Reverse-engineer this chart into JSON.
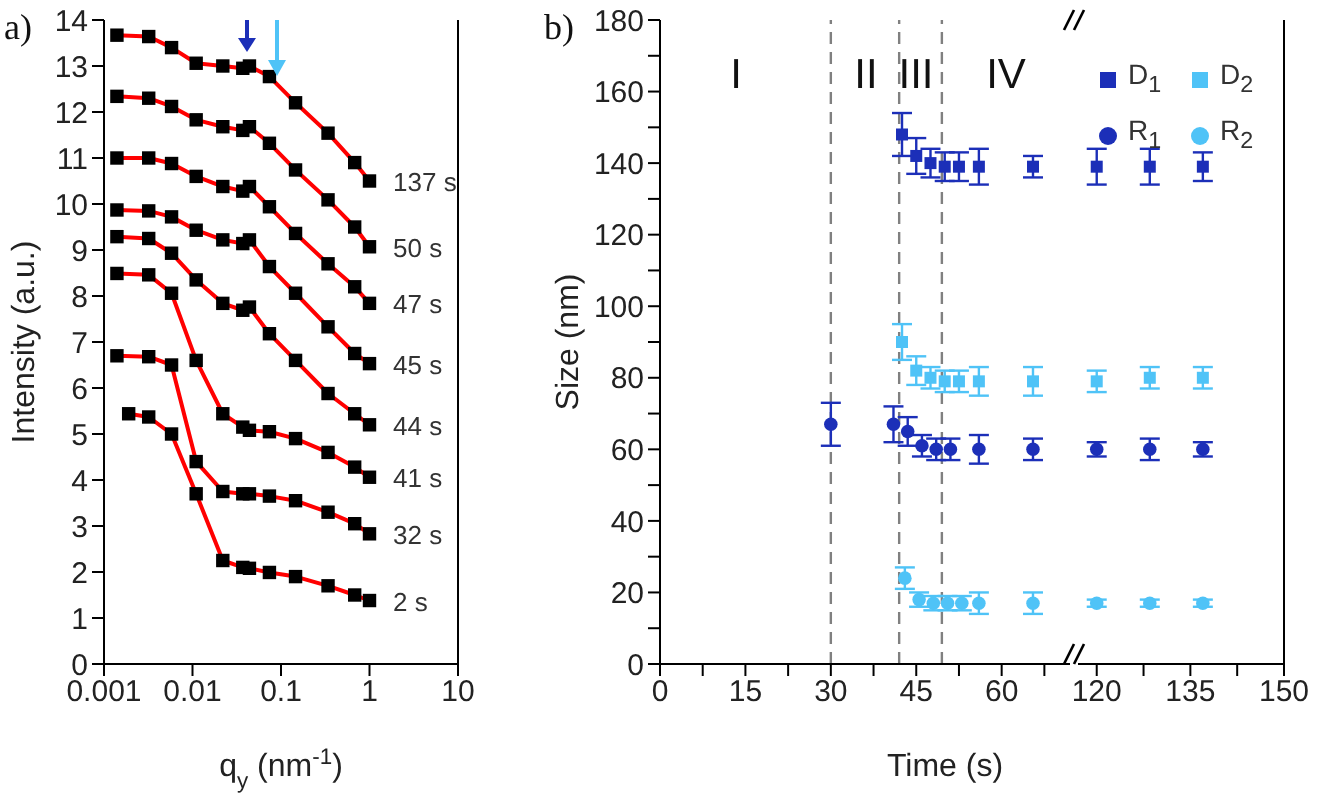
{
  "chart_data": [
    {
      "type": "scatter",
      "annotations": [
        "a)"
      ],
      "xlabel": "q$_{y}$ (nm$^{-1}$)",
      "ylabel": "Intensity (a.u.)",
      "log": "x",
      "xlim": [
        0.001,
        10
      ],
      "xticks": [
        0.001,
        0.01,
        0.1,
        1,
        10
      ],
      "ylim": [
        0,
        14
      ],
      "yticks": [
        0,
        1,
        2,
        3,
        4,
        5,
        6,
        7,
        8,
        9,
        10,
        11,
        12,
        13,
        14
      ],
      "grid": false,
      "legend": false,
      "marker": "square",
      "series": [
        {
          "name": "137 s",
          "color": "#000000",
          "x": [
            0.0014,
            0.0032,
            0.0058,
            0.011,
            0.022,
            0.037,
            0.044,
            0.074,
            0.146,
            0.34,
            0.68,
            1.0
          ],
          "values": [
            13.67,
            13.64,
            13.4,
            13.06,
            13.0,
            12.95,
            13.0,
            12.77,
            12.2,
            11.54,
            10.9,
            10.5
          ]
        },
        {
          "name": "50 s",
          "color": "#000000",
          "x": [
            0.0014,
            0.0032,
            0.0058,
            0.011,
            0.022,
            0.037,
            0.044,
            0.074,
            0.146,
            0.34,
            0.68,
            1.0
          ],
          "values": [
            12.34,
            12.3,
            12.12,
            11.83,
            11.68,
            11.6,
            11.68,
            11.32,
            10.74,
            10.09,
            9.5,
            9.07
          ]
        },
        {
          "name": "47 s",
          "color": "#000000",
          "x": [
            0.0014,
            0.0032,
            0.0058,
            0.011,
            0.022,
            0.037,
            0.044,
            0.074,
            0.146,
            0.34,
            0.68,
            1.0
          ],
          "values": [
            11.0,
            11.0,
            10.88,
            10.6,
            10.38,
            10.28,
            10.38,
            9.94,
            9.36,
            8.7,
            8.2,
            7.84
          ]
        },
        {
          "name": "45 s",
          "color": "#000000",
          "x": [
            0.0014,
            0.0032,
            0.0058,
            0.011,
            0.022,
            0.037,
            0.044,
            0.074,
            0.146,
            0.34,
            0.68,
            1.0
          ],
          "values": [
            9.87,
            9.85,
            9.72,
            9.43,
            9.22,
            9.14,
            9.22,
            8.64,
            8.06,
            7.33,
            6.75,
            6.53
          ]
        },
        {
          "name": "44 s",
          "color": "#000000",
          "x": [
            0.0014,
            0.0032,
            0.0058,
            0.011,
            0.022,
            0.037,
            0.044,
            0.074,
            0.146,
            0.34,
            0.68,
            1.0
          ],
          "values": [
            9.29,
            9.25,
            8.93,
            8.35,
            7.84,
            7.69,
            7.76,
            7.18,
            6.6,
            5.88,
            5.44,
            5.2
          ]
        },
        {
          "name": "41 s",
          "color": "#000000",
          "x": [
            0.0014,
            0.0032,
            0.0058,
            0.011,
            0.022,
            0.037,
            0.044,
            0.074,
            0.146,
            0.34,
            0.68,
            1.0
          ],
          "values": [
            8.49,
            8.46,
            8.06,
            6.6,
            5.44,
            5.15,
            5.08,
            5.05,
            4.9,
            4.6,
            4.28,
            4.06
          ]
        },
        {
          "name": "32 s",
          "color": "#000000",
          "x": [
            0.0014,
            0.0032,
            0.0058,
            0.011,
            0.022,
            0.037,
            0.044,
            0.074,
            0.146,
            0.34,
            0.68,
            1.0
          ],
          "values": [
            6.7,
            6.68,
            6.5,
            4.4,
            3.75,
            3.7,
            3.7,
            3.65,
            3.55,
            3.3,
            3.05,
            2.83
          ]
        },
        {
          "name": "2 s",
          "color": "#000000",
          "x": [
            0.0019,
            0.0032,
            0.0058,
            0.011,
            0.022,
            0.037,
            0.044,
            0.074,
            0.146,
            0.34,
            0.68,
            1.0
          ],
          "values": [
            5.44,
            5.37,
            5.0,
            3.7,
            2.25,
            2.1,
            2.08,
            1.99,
            1.9,
            1.7,
            1.5,
            1.38
          ]
        },
        {
          "type": "line",
          "marker": "none",
          "color": "#ff0000",
          "x": [
            0.0014,
            0.0032,
            0.0058,
            0.011,
            0.022,
            0.037,
            0.044,
            0.074,
            0.146,
            0.34,
            0.68,
            1.0
          ],
          "values": [
            13.67,
            13.64,
            13.4,
            13.06,
            13.0,
            12.95,
            13.0,
            12.77,
            12.2,
            11.54,
            10.9,
            10.5
          ]
        },
        {
          "type": "line",
          "marker": "none",
          "color": "#ff0000",
          "x": [
            0.0014,
            0.0032,
            0.0058,
            0.011,
            0.022,
            0.037,
            0.044,
            0.074,
            0.146,
            0.34,
            0.68,
            1.0
          ],
          "values": [
            12.34,
            12.3,
            12.12,
            11.83,
            11.68,
            11.6,
            11.68,
            11.32,
            10.74,
            10.09,
            9.5,
            9.07
          ]
        },
        {
          "type": "line",
          "marker": "none",
          "color": "#ff0000",
          "x": [
            0.0014,
            0.0032,
            0.0058,
            0.011,
            0.022,
            0.037,
            0.044,
            0.074,
            0.146,
            0.34,
            0.68,
            1.0
          ],
          "values": [
            11.0,
            11.0,
            10.88,
            10.6,
            10.38,
            10.28,
            10.38,
            9.94,
            9.36,
            8.7,
            8.2,
            7.84
          ]
        },
        {
          "type": "line",
          "marker": "none",
          "color": "#ff0000",
          "x": [
            0.0014,
            0.0032,
            0.0058,
            0.011,
            0.022,
            0.037,
            0.044,
            0.074,
            0.146,
            0.34,
            0.68,
            1.0
          ],
          "values": [
            9.87,
            9.85,
            9.72,
            9.43,
            9.22,
            9.14,
            9.22,
            8.64,
            8.06,
            7.33,
            6.75,
            6.53
          ]
        },
        {
          "type": "line",
          "marker": "none",
          "color": "#ff0000",
          "x": [
            0.0014,
            0.0032,
            0.0058,
            0.011,
            0.022,
            0.037,
            0.044,
            0.074,
            0.146,
            0.34,
            0.68,
            1.0
          ],
          "values": [
            9.29,
            9.25,
            8.93,
            8.35,
            7.84,
            7.69,
            7.76,
            7.18,
            6.6,
            5.88,
            5.44,
            5.2
          ]
        },
        {
          "type": "line",
          "marker": "none",
          "color": "#ff0000",
          "x": [
            0.0014,
            0.0032,
            0.0058,
            0.011,
            0.022,
            0.037,
            0.044,
            0.074,
            0.146,
            0.34,
            0.68,
            1.0
          ],
          "values": [
            8.49,
            8.46,
            8.06,
            6.6,
            5.44,
            5.15,
            5.08,
            5.05,
            4.9,
            4.6,
            4.28,
            4.06
          ]
        },
        {
          "type": "line",
          "marker": "none",
          "color": "#ff0000",
          "x": [
            0.0014,
            0.0032,
            0.0058,
            0.011,
            0.022,
            0.037,
            0.044,
            0.074,
            0.146,
            0.34,
            0.68,
            1.0
          ],
          "values": [
            6.7,
            6.68,
            6.5,
            4.4,
            3.75,
            3.7,
            3.7,
            3.65,
            3.55,
            3.3,
            3.05,
            2.83
          ]
        },
        {
          "type": "line",
          "marker": "none",
          "color": "#ff0000",
          "x": [
            0.0019,
            0.0032,
            0.0058,
            0.011,
            0.022,
            0.037,
            0.044,
            0.074,
            0.146,
            0.34,
            0.68,
            1.0
          ],
          "values": [
            5.44,
            5.37,
            5.0,
            3.7,
            2.25,
            2.1,
            2.08,
            1.99,
            1.9,
            1.7,
            1.5,
            1.38
          ]
        }
      ]
    },
    {
      "type": "scatter",
      "annotations": [
        "b)",
        "I",
        "II",
        "III",
        "IV"
      ],
      "xlabel": "Time (s)",
      "ylabel": "Size (nm)",
      "xlim": [
        0,
        72
      ],
      "xticks": [
        0,
        {
          "value": 7.5,
          "label": null
        },
        15,
        {
          "value": 22.5,
          "label": null
        },
        30,
        {
          "value": 37.5,
          "label": null
        },
        45,
        {
          "value": 52.5,
          "label": null
        },
        60,
        {
          "value": 67.5,
          "label": null
        }
      ],
      "ylim": [
        0,
        180
      ],
      "yticks": [
        0,
        {
          "value": 10,
          "label": null
        },
        20,
        {
          "value": 30,
          "label": null
        },
        40,
        {
          "value": 50,
          "label": null
        },
        60,
        {
          "value": 70,
          "label": null
        },
        80,
        {
          "value": 90,
          "label": null
        },
        100,
        {
          "value": 110,
          "label": null
        },
        120,
        {
          "value": 130,
          "label": null
        },
        140,
        {
          "value": 150,
          "label": null
        },
        160,
        {
          "value": 170,
          "label": null
        },
        180
      ],
      "grid": false,
      "legend": false,
      "ref_lines": [
        {
          "axis": "x",
          "value": 30,
          "color": "#808080",
          "line_style": "dashed"
        },
        {
          "axis": "x",
          "value": 42,
          "color": "#808080",
          "line_style": "dashed"
        },
        {
          "axis": "x",
          "value": 49.5,
          "color": "#808080",
          "line_style": "dashed"
        }
      ],
      "series": [
        {
          "marker": "square",
          "color": "#1c2fb8",
          "x": [
            42.5,
            45,
            47.5,
            50,
            52.5,
            56,
            65.5
          ],
          "values": [
            148,
            142,
            140,
            139,
            139,
            139,
            139
          ],
          "errors": [
            6,
            5,
            4,
            4,
            4,
            5,
            3
          ]
        },
        {
          "marker": "square",
          "color": "#4fc3f7",
          "x": [
            42.5,
            45,
            47.5,
            50,
            52.5,
            56,
            65.5
          ],
          "values": [
            90,
            82,
            80,
            79,
            79,
            79,
            79
          ],
          "errors": [
            5,
            4,
            3,
            3,
            3,
            4,
            4
          ]
        },
        {
          "marker": "circle",
          "color": "#1c2fb8",
          "x": [
            30,
            41,
            43.5,
            46,
            48.5,
            51,
            56,
            65.5
          ],
          "values": [
            67,
            67,
            65,
            61,
            60,
            60,
            60,
            60
          ],
          "errors": [
            6,
            5,
            4,
            3,
            3,
            3,
            4,
            3
          ]
        },
        {
          "marker": "circle",
          "color": "#4fc3f7",
          "x": [
            43,
            45.5,
            48,
            50.5,
            53,
            56,
            65.5
          ],
          "values": [
            24,
            18,
            17,
            17,
            17,
            17,
            17
          ],
          "errors": [
            3,
            2,
            2,
            2,
            2,
            3,
            3
          ]
        }
      ]
    },
    {
      "type": "scatter",
      "tick_labels": "x",
      "xlim": [
        117,
        150
      ],
      "xticks": [
        120,
        {
          "value": 127.5,
          "label": null
        },
        135,
        {
          "value": 142.5,
          "label": null
        },
        150
      ],
      "ylim": [
        0,
        180
      ],
      "yticks": [
        0,
        20,
        40,
        60,
        80,
        100,
        120,
        140,
        160,
        180
      ],
      "grid": false,
      "legend": "top right",
      "series": [
        {
          "name": "D$_{1}$",
          "marker": "square",
          "color": "#1c2fb8",
          "x": [
            120,
            128.5,
            137
          ],
          "values": [
            139,
            139,
            139
          ],
          "errors": [
            5,
            5,
            4
          ]
        },
        {
          "name": "D$_{2}$",
          "marker": "square",
          "color": "#4fc3f7",
          "x": [
            120,
            128.5,
            137
          ],
          "values": [
            79,
            80,
            80
          ],
          "errors": [
            3,
            3,
            3
          ]
        },
        {
          "name": "R$_{1}$",
          "marker": "circle",
          "color": "#1c2fb8",
          "x": [
            120,
            128.5,
            137
          ],
          "values": [
            60,
            60,
            60
          ],
          "errors": [
            2,
            3,
            2
          ]
        },
        {
          "name": "R$_{2}$",
          "marker": "circle",
          "color": "#4fc3f7",
          "x": [
            120,
            128.5,
            137
          ],
          "values": [
            17,
            17,
            17
          ],
          "errors": [
            1,
            1,
            1
          ]
        }
      ]
    }
  ]
}
